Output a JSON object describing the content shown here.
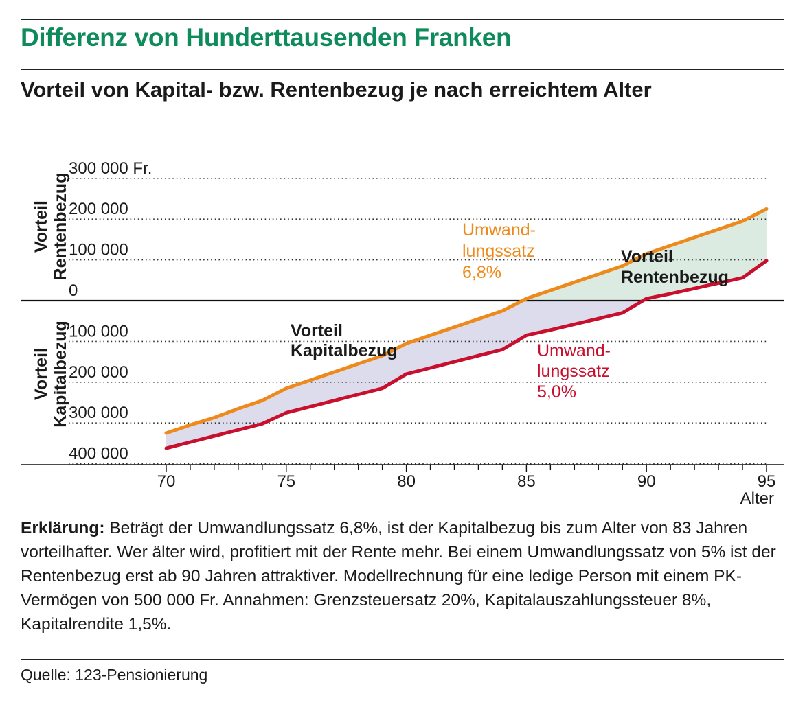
{
  "header": {
    "title": "Differenz von Hunderttausenden Franken",
    "subtitle": "Vorteil von Kapital- bzw. Rentenbezug je nach erreichtem Alter"
  },
  "chart_data": {
    "type": "line",
    "xlabel": "Alter",
    "x_ticks": [
      70,
      75,
      80,
      85,
      90,
      95
    ],
    "xlim": [
      70,
      95
    ],
    "ylim": [
      -400000,
      300000
    ],
    "y_tick_labels": [
      {
        "value": 300000,
        "label": "300 000 Fr."
      },
      {
        "value": 200000,
        "label": "200 000"
      },
      {
        "value": 100000,
        "label": "100 000"
      },
      {
        "value": 0,
        "label": "0"
      },
      {
        "value": -100000,
        "label": "100 000"
      },
      {
        "value": -200000,
        "label": "200 000"
      },
      {
        "value": -300000,
        "label": "300 000"
      },
      {
        "value": -400000,
        "label": "400 000"
      }
    ],
    "axis_labels": {
      "positive": [
        "Vorteil",
        "Rentenbezug"
      ],
      "negative": [
        "Vorteil",
        "Kapitalbezug"
      ]
    },
    "grid": "dotted horizontal",
    "series": [
      {
        "name": "Umwandlungssatz 6,8%",
        "label_lines": [
          "Umwand-",
          "lungssatz",
          "6,8%"
        ],
        "color": "#ee8a1b",
        "x": [
          70,
          71,
          72,
          73,
          74,
          75,
          76,
          77,
          78,
          79,
          80,
          81,
          82,
          83,
          84,
          85,
          86,
          87,
          88,
          89,
          90,
          91,
          92,
          93,
          94,
          95
        ],
        "values": [
          -325000,
          -305000,
          -287000,
          -265000,
          -245000,
          -215000,
          -195000,
          -175000,
          -155000,
          -135000,
          -105000,
          -85000,
          -65000,
          -45000,
          -25000,
          5000,
          25000,
          45000,
          65000,
          85000,
          115000,
          135000,
          155000,
          175000,
          195000,
          225000
        ]
      },
      {
        "name": "Umwandlungssatz 5,0%",
        "label_lines": [
          "Umwand-",
          "lungssatz",
          "5,0%"
        ],
        "color": "#c8102e",
        "x": [
          70,
          71,
          72,
          73,
          74,
          75,
          76,
          77,
          78,
          79,
          80,
          81,
          82,
          83,
          84,
          85,
          86,
          87,
          88,
          89,
          90,
          91,
          92,
          93,
          94,
          95
        ],
        "values": [
          -362000,
          -347000,
          -332000,
          -317000,
          -302000,
          -275000,
          -260000,
          -245000,
          -230000,
          -215000,
          -180000,
          -165000,
          -150000,
          -135000,
          -120000,
          -85000,
          -72000,
          -58000,
          -44000,
          -30000,
          5000,
          17000,
          30000,
          43000,
          56000,
          98000
        ]
      }
    ],
    "area_labels": [
      {
        "lines": [
          "Vorteil",
          "Kapitalbezug"
        ],
        "region": "below-zero"
      },
      {
        "lines": [
          "Vorteil",
          "Rentenbezug"
        ],
        "region": "above-zero"
      }
    ],
    "area_colors": {
      "above": "#dcebe2",
      "below": "#dcdced"
    }
  },
  "note": {
    "lead": "Erklärung:",
    "text": " Beträgt der Umwandlungssatz 6,8%, ist der Kapitalbezug bis zum Alter von 83 Jahren vorteilhafter. Wer älter wird, profitiert mit der Rente mehr. Bei einem Umwandlungssatz von 5% ist der Rentenbezug erst ab 90 Jahren attraktiver. Modellrechnung für eine ledige Person mit einem PK-Vermögen von 500 000 Fr. Annahmen: Grenzsteuersatz 20%, Kapitalauszahlungssteuer 8%, Kapitalrendite 1,5%."
  },
  "source": "Quelle: 123-Pensionierung"
}
